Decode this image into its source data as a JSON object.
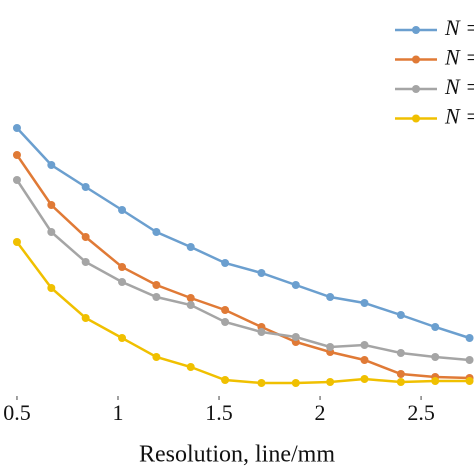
{
  "chart_data": {
    "type": "line",
    "xlabel": "Resolution, line/mm",
    "x": [
      0.5,
      0.67,
      0.84,
      1.02,
      1.19,
      1.36,
      1.53,
      1.71,
      1.88,
      2.05,
      2.22,
      2.4,
      2.57,
      2.74
    ],
    "xlim": [
      0.416,
      2.762
    ],
    "xticks": [
      0.5,
      1,
      1.5,
      2,
      2.5
    ],
    "ylim": [
      0,
      100
    ],
    "legend": "upper right",
    "series": [
      {
        "name": "N =",
        "color": "#6b9fcf",
        "values": [
          68,
          58.75,
          53.25,
          47.5,
          42,
          38.25,
          34.25,
          31.75,
          28.75,
          25.75,
          24.25,
          21.25,
          18.25,
          15.5
        ]
      },
      {
        "name": "N =",
        "color": "#e07a36",
        "values": [
          61.25,
          48.75,
          40.75,
          33.25,
          28.75,
          25.5,
          22.5,
          18.25,
          14.5,
          12,
          10,
          6.5,
          5.75,
          5.5
        ]
      },
      {
        "name": "N =",
        "color": "#a5a5a5",
        "values": [
          55,
          42,
          34.5,
          29.5,
          25.75,
          23.75,
          19.5,
          17,
          15.75,
          13.25,
          13.75,
          11.75,
          10.75,
          10
        ]
      },
      {
        "name": "N =",
        "color": "#f0c000",
        "values": [
          39.5,
          28,
          20.5,
          15.5,
          10.75,
          8.25,
          5,
          4.25,
          4.25,
          4.5,
          5.25,
          4.5,
          4.75,
          4.75
        ]
      }
    ]
  }
}
